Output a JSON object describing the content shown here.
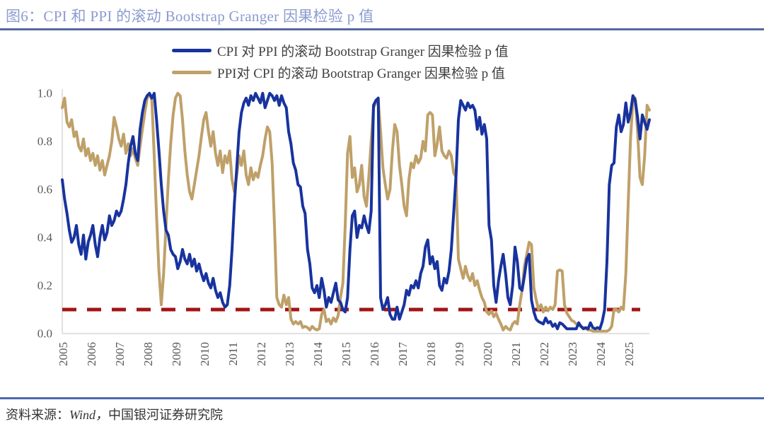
{
  "title": "图6：CPI 和 PPI 的滚动 Bootstrap Granger 因果检验 p 值",
  "source": {
    "label": "资料来源：",
    "provider": "Wind，",
    "institution": "中国银河证券研究院"
  },
  "colors": {
    "title": "#8B9CD0",
    "divider_top": "#54689E",
    "divider_bottom": "#4C68B0",
    "axis_text": "#595959",
    "frame": "#D9D9D9",
    "legend_text": "#3F3F3F",
    "source_text": "#333333"
  },
  "chart_data": {
    "type": "line",
    "title": "图6：CPI 和 PPI 的滚动 Bootstrap Granger 因果检验 p 值",
    "xlabel": "",
    "ylabel": "",
    "ylim": [
      0.0,
      1.0
    ],
    "grid": false,
    "legend_position": "top-center",
    "x_start_year": 2005,
    "points_per_year": 12,
    "x_tick_labels": [
      "2005",
      "2006",
      "2007",
      "2008",
      "2009",
      "2010",
      "2011",
      "2012",
      "2013",
      "2014",
      "2015",
      "2016",
      "2017",
      "2018",
      "2019",
      "2020",
      "2021",
      "2022",
      "2023",
      "2024",
      "2025"
    ],
    "y_ticks": [
      0.0,
      0.2,
      0.4,
      0.6,
      0.8,
      1.0
    ],
    "threshold_line": {
      "value": 0.1,
      "style": "dashed",
      "color": "#A31515"
    },
    "series": [
      {
        "name": "CPI 对 PPI 的滚动 Bootstrap Granger 因果检验 p 值",
        "color": "#18339E",
        "values": [
          0.64,
          0.56,
          0.5,
          0.43,
          0.38,
          0.4,
          0.45,
          0.37,
          0.33,
          0.41,
          0.31,
          0.38,
          0.41,
          0.45,
          0.37,
          0.32,
          0.4,
          0.45,
          0.39,
          0.42,
          0.49,
          0.45,
          0.47,
          0.51,
          0.49,
          0.51,
          0.56,
          0.62,
          0.71,
          0.78,
          0.82,
          0.75,
          0.72,
          0.85,
          0.92,
          0.97,
          0.99,
          1.0,
          0.98,
          1.0,
          0.89,
          0.76,
          0.62,
          0.51,
          0.43,
          0.41,
          0.35,
          0.33,
          0.32,
          0.27,
          0.3,
          0.35,
          0.31,
          0.29,
          0.33,
          0.28,
          0.31,
          0.26,
          0.29,
          0.25,
          0.22,
          0.25,
          0.21,
          0.19,
          0.23,
          0.18,
          0.15,
          0.17,
          0.13,
          0.11,
          0.12,
          0.2,
          0.35,
          0.54,
          0.69,
          0.84,
          0.92,
          0.96,
          0.98,
          0.95,
          0.99,
          0.97,
          1.0,
          0.98,
          0.96,
          1.0,
          0.94,
          0.97,
          1.0,
          0.99,
          0.97,
          0.99,
          0.95,
          0.99,
          0.96,
          0.94,
          0.84,
          0.79,
          0.71,
          0.68,
          0.62,
          0.61,
          0.53,
          0.5,
          0.35,
          0.29,
          0.19,
          0.17,
          0.2,
          0.15,
          0.23,
          0.18,
          0.11,
          0.15,
          0.13,
          0.17,
          0.21,
          0.14,
          0.13,
          0.1,
          0.09,
          0.15,
          0.35,
          0.49,
          0.51,
          0.4,
          0.45,
          0.44,
          0.49,
          0.45,
          0.42,
          0.51,
          0.95,
          0.97,
          0.98,
          0.15,
          0.1,
          0.12,
          0.15,
          0.08,
          0.06,
          0.06,
          0.11,
          0.06,
          0.09,
          0.12,
          0.18,
          0.16,
          0.2,
          0.19,
          0.22,
          0.19,
          0.25,
          0.28,
          0.36,
          0.39,
          0.29,
          0.32,
          0.27,
          0.3,
          0.2,
          0.18,
          0.23,
          0.21,
          0.26,
          0.35,
          0.5,
          0.66,
          0.89,
          0.97,
          0.95,
          0.93,
          0.96,
          0.94,
          0.95,
          0.93,
          0.85,
          0.9,
          0.83,
          0.87,
          0.81,
          0.45,
          0.39,
          0.2,
          0.13,
          0.22,
          0.28,
          0.33,
          0.25,
          0.15,
          0.12,
          0.2,
          0.36,
          0.3,
          0.19,
          0.18,
          0.24,
          0.31,
          0.33,
          0.14,
          0.09,
          0.06,
          0.05,
          0.045,
          0.04,
          0.065,
          0.045,
          0.05,
          0.03,
          0.04,
          0.02,
          0.045,
          0.04,
          0.03,
          0.02,
          0.02,
          0.02,
          0.02,
          0.02,
          0.045,
          0.03,
          0.02,
          0.025,
          0.02,
          0.045,
          0.025,
          0.02,
          0.025,
          0.02,
          0.05,
          0.1,
          0.3,
          0.62,
          0.7,
          0.71,
          0.86,
          0.91,
          0.84,
          0.87,
          0.96,
          0.88,
          0.92,
          0.99,
          0.97,
          0.9,
          0.81,
          0.91,
          0.88,
          0.85,
          0.89
        ]
      },
      {
        "name": "PPI对 CPI 的滚动 Bootstrap Granger 因果检验 p 值",
        "color": "#BFA069",
        "values": [
          0.94,
          0.98,
          0.88,
          0.86,
          0.89,
          0.82,
          0.84,
          0.78,
          0.76,
          0.81,
          0.74,
          0.77,
          0.72,
          0.75,
          0.7,
          0.74,
          0.68,
          0.72,
          0.66,
          0.7,
          0.74,
          0.8,
          0.9,
          0.86,
          0.81,
          0.78,
          0.83,
          0.75,
          0.79,
          0.74,
          0.77,
          0.73,
          0.7,
          0.78,
          0.85,
          0.92,
          0.98,
          1.0,
          0.97,
          0.74,
          0.49,
          0.26,
          0.12,
          0.25,
          0.45,
          0.64,
          0.79,
          0.91,
          0.98,
          1.0,
          0.99,
          0.89,
          0.76,
          0.66,
          0.59,
          0.56,
          0.62,
          0.68,
          0.74,
          0.82,
          0.89,
          0.92,
          0.84,
          0.78,
          0.84,
          0.75,
          0.7,
          0.76,
          0.67,
          0.74,
          0.71,
          0.76,
          0.64,
          0.59,
          0.66,
          0.74,
          0.7,
          0.76,
          0.66,
          0.62,
          0.69,
          0.64,
          0.67,
          0.65,
          0.7,
          0.74,
          0.81,
          0.86,
          0.84,
          0.71,
          0.45,
          0.15,
          0.12,
          0.11,
          0.16,
          0.12,
          0.15,
          0.06,
          0.04,
          0.05,
          0.04,
          0.05,
          0.025,
          0.03,
          0.025,
          0.015,
          0.03,
          0.02,
          0.015,
          0.02,
          0.08,
          0.1,
          0.05,
          0.06,
          0.04,
          0.065,
          0.05,
          0.075,
          0.15,
          0.21,
          0.45,
          0.75,
          0.82,
          0.65,
          0.69,
          0.59,
          0.62,
          0.7,
          0.57,
          0.53,
          0.65,
          0.8,
          0.94,
          0.96,
          0.97,
          0.84,
          0.69,
          0.62,
          0.56,
          0.6,
          0.76,
          0.87,
          0.84,
          0.7,
          0.62,
          0.53,
          0.49,
          0.64,
          0.71,
          0.69,
          0.74,
          0.71,
          0.73,
          0.8,
          0.76,
          0.91,
          0.92,
          0.91,
          0.74,
          0.79,
          0.86,
          0.76,
          0.74,
          0.73,
          0.76,
          0.74,
          0.67,
          0.65,
          0.31,
          0.27,
          0.23,
          0.28,
          0.24,
          0.22,
          0.25,
          0.2,
          0.22,
          0.18,
          0.15,
          0.13,
          0.09,
          0.08,
          0.095,
          0.07,
          0.085,
          0.06,
          0.04,
          0.015,
          0.03,
          0.02,
          0.015,
          0.04,
          0.05,
          0.04,
          0.12,
          0.18,
          0.28,
          0.33,
          0.38,
          0.37,
          0.19,
          0.14,
          0.1,
          0.12,
          0.09,
          0.11,
          0.095,
          0.11,
          0.1,
          0.12,
          0.26,
          0.265,
          0.26,
          0.12,
          0.085,
          0.07,
          0.055,
          0.05,
          0.04,
          0.035,
          0.03,
          0.025,
          0.02,
          0.015,
          0.015,
          0.01,
          0.01,
          0.01,
          0.01,
          0.01,
          0.01,
          0.01,
          0.015,
          0.03,
          0.1,
          0.1,
          0.09,
          0.11,
          0.1,
          0.25,
          0.54,
          0.81,
          0.97,
          0.98,
          0.84,
          0.65,
          0.62,
          0.74,
          0.95,
          0.93
        ]
      }
    ]
  }
}
